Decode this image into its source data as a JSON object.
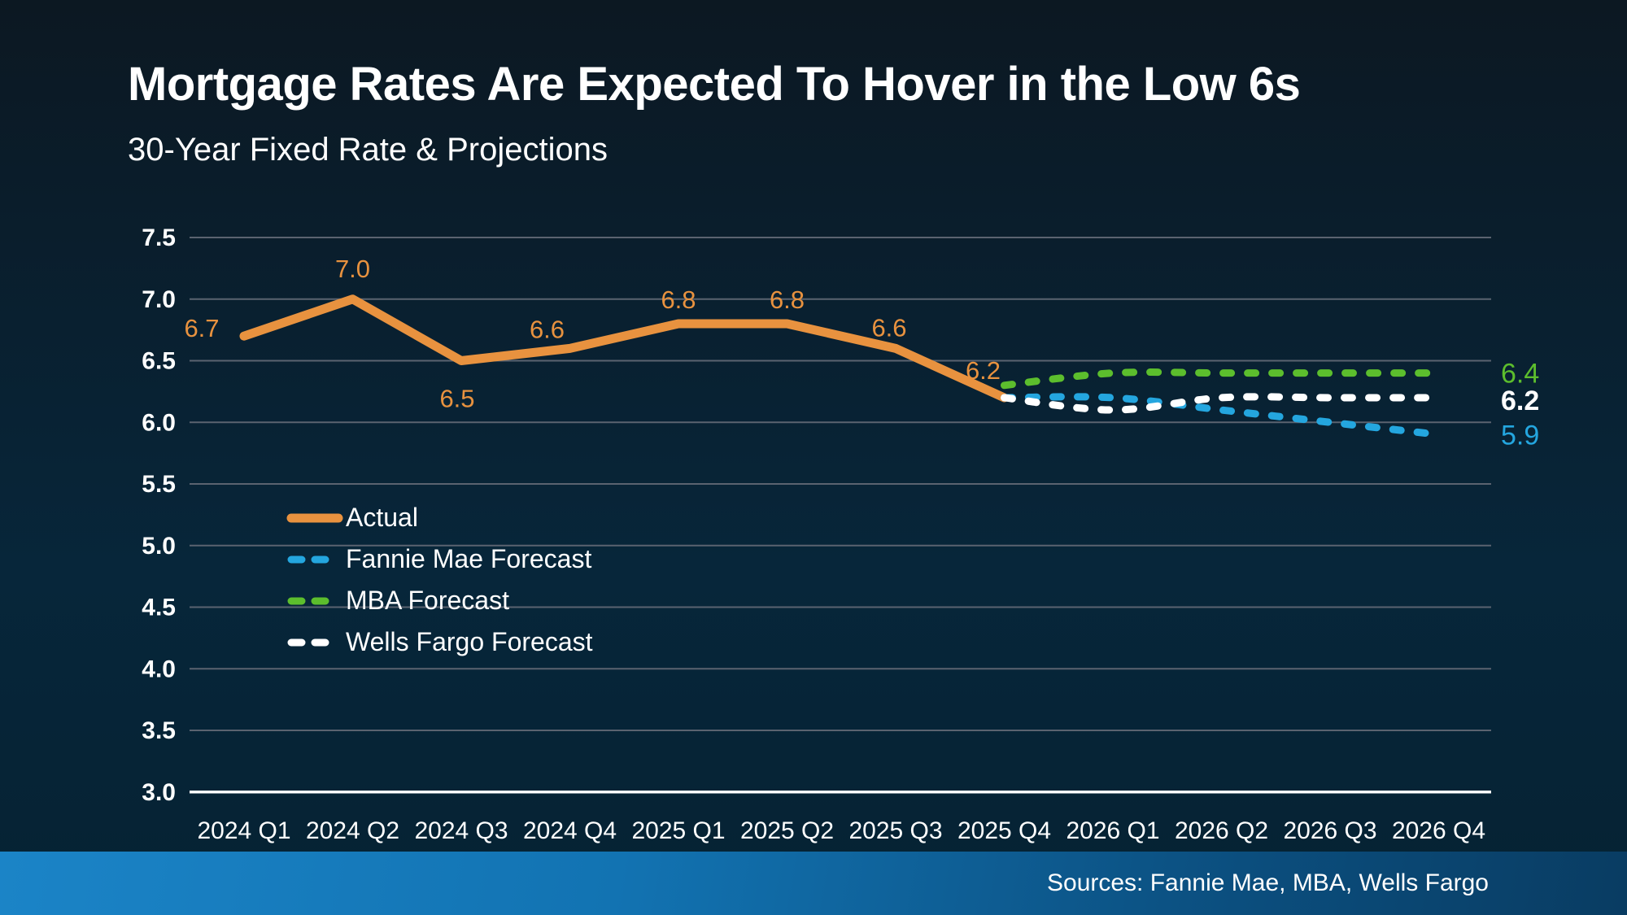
{
  "header": {
    "title": "Mortgage Rates Are Expected To Hover in the Low 6s",
    "subtitle": "30-Year Fixed Rate & Projections"
  },
  "footer": {
    "sources": "Sources: Fannie Mae, MBA, Wells Fargo"
  },
  "colors": {
    "background_top": "#0C1822",
    "background_bottom": "#052233",
    "gridline": "#5A6370",
    "axis_line": "#FFFFFF",
    "text": "#FFFFFF",
    "actual": "#E8923F",
    "fannie_mae": "#24A6DF",
    "mba": "#5CBE2D",
    "wells_fargo": "#FFFFFF",
    "footer_bar_left": "#1B84C7",
    "footer_bar_right": "#093C62"
  },
  "chart_data": {
    "type": "line",
    "title": "Mortgage Rates Are Expected To Hover in the Low 6s",
    "subtitle": "30-Year Fixed Rate & Projections",
    "xlabel": "",
    "ylabel": "",
    "categories": [
      "2024 Q1",
      "2024 Q2",
      "2024 Q3",
      "2024 Q4",
      "2025 Q1",
      "2025 Q2",
      "2025 Q3",
      "2025 Q4",
      "2026 Q1",
      "2026 Q2",
      "2026 Q3",
      "2026 Q4"
    ],
    "ylim": [
      3.0,
      7.5
    ],
    "ytick_step": 0.5,
    "ytick_labels": [
      "7.5",
      "7.0",
      "6.5",
      "6.0",
      "5.5",
      "5.0",
      "4.5",
      "4.0",
      "3.5",
      "3.0"
    ],
    "grid": true,
    "legend_position": "middle-left",
    "series": [
      {
        "name": "Actual",
        "color": "#E8923F",
        "dash": false,
        "smooth": false,
        "width": 11,
        "values": [
          6.7,
          7.0,
          6.5,
          6.6,
          6.8,
          6.8,
          6.6,
          6.2,
          null,
          null,
          null,
          null
        ],
        "point_labels": [
          {
            "i": 0,
            "text": "6.7",
            "dx": -52,
            "dy": -10
          },
          {
            "i": 1,
            "text": "7.0",
            "dx": 0,
            "dy": -38
          },
          {
            "i": 2,
            "text": "6.5",
            "dx": -5,
            "dy": 46
          },
          {
            "i": 3,
            "text": "6.6",
            "dx": -28,
            "dy": -24
          },
          {
            "i": 4,
            "text": "6.8",
            "dx": 0,
            "dy": -30
          },
          {
            "i": 5,
            "text": "6.8",
            "dx": 0,
            "dy": -30
          },
          {
            "i": 6,
            "text": "6.6",
            "dx": -8,
            "dy": -26
          },
          {
            "i": 7,
            "text": "6.2",
            "dx": -26,
            "dy": -34
          }
        ]
      },
      {
        "name": "Fannie Mae Forecast",
        "color": "#24A6DF",
        "dash": true,
        "smooth": true,
        "width": 9,
        "values": [
          null,
          null,
          null,
          null,
          null,
          null,
          null,
          6.2,
          6.2,
          6.1,
          6.0,
          5.9
        ],
        "end_label": {
          "text": "5.9",
          "dy": 0,
          "bold": false
        }
      },
      {
        "name": "MBA Forecast",
        "color": "#5CBE2D",
        "dash": true,
        "smooth": true,
        "width": 9,
        "values": [
          null,
          null,
          null,
          null,
          null,
          null,
          null,
          6.3,
          6.4,
          6.4,
          6.4,
          6.4
        ],
        "end_label": {
          "text": "6.4",
          "dy": 0,
          "bold": false
        }
      },
      {
        "name": "Wells Fargo Forecast",
        "color": "#FFFFFF",
        "dash": true,
        "smooth": true,
        "width": 9,
        "values": [
          null,
          null,
          null,
          null,
          null,
          null,
          null,
          6.2,
          6.1,
          6.2,
          6.2,
          6.2
        ],
        "end_label": {
          "text": "6.2",
          "dy": 3,
          "bold": true
        }
      }
    ]
  }
}
